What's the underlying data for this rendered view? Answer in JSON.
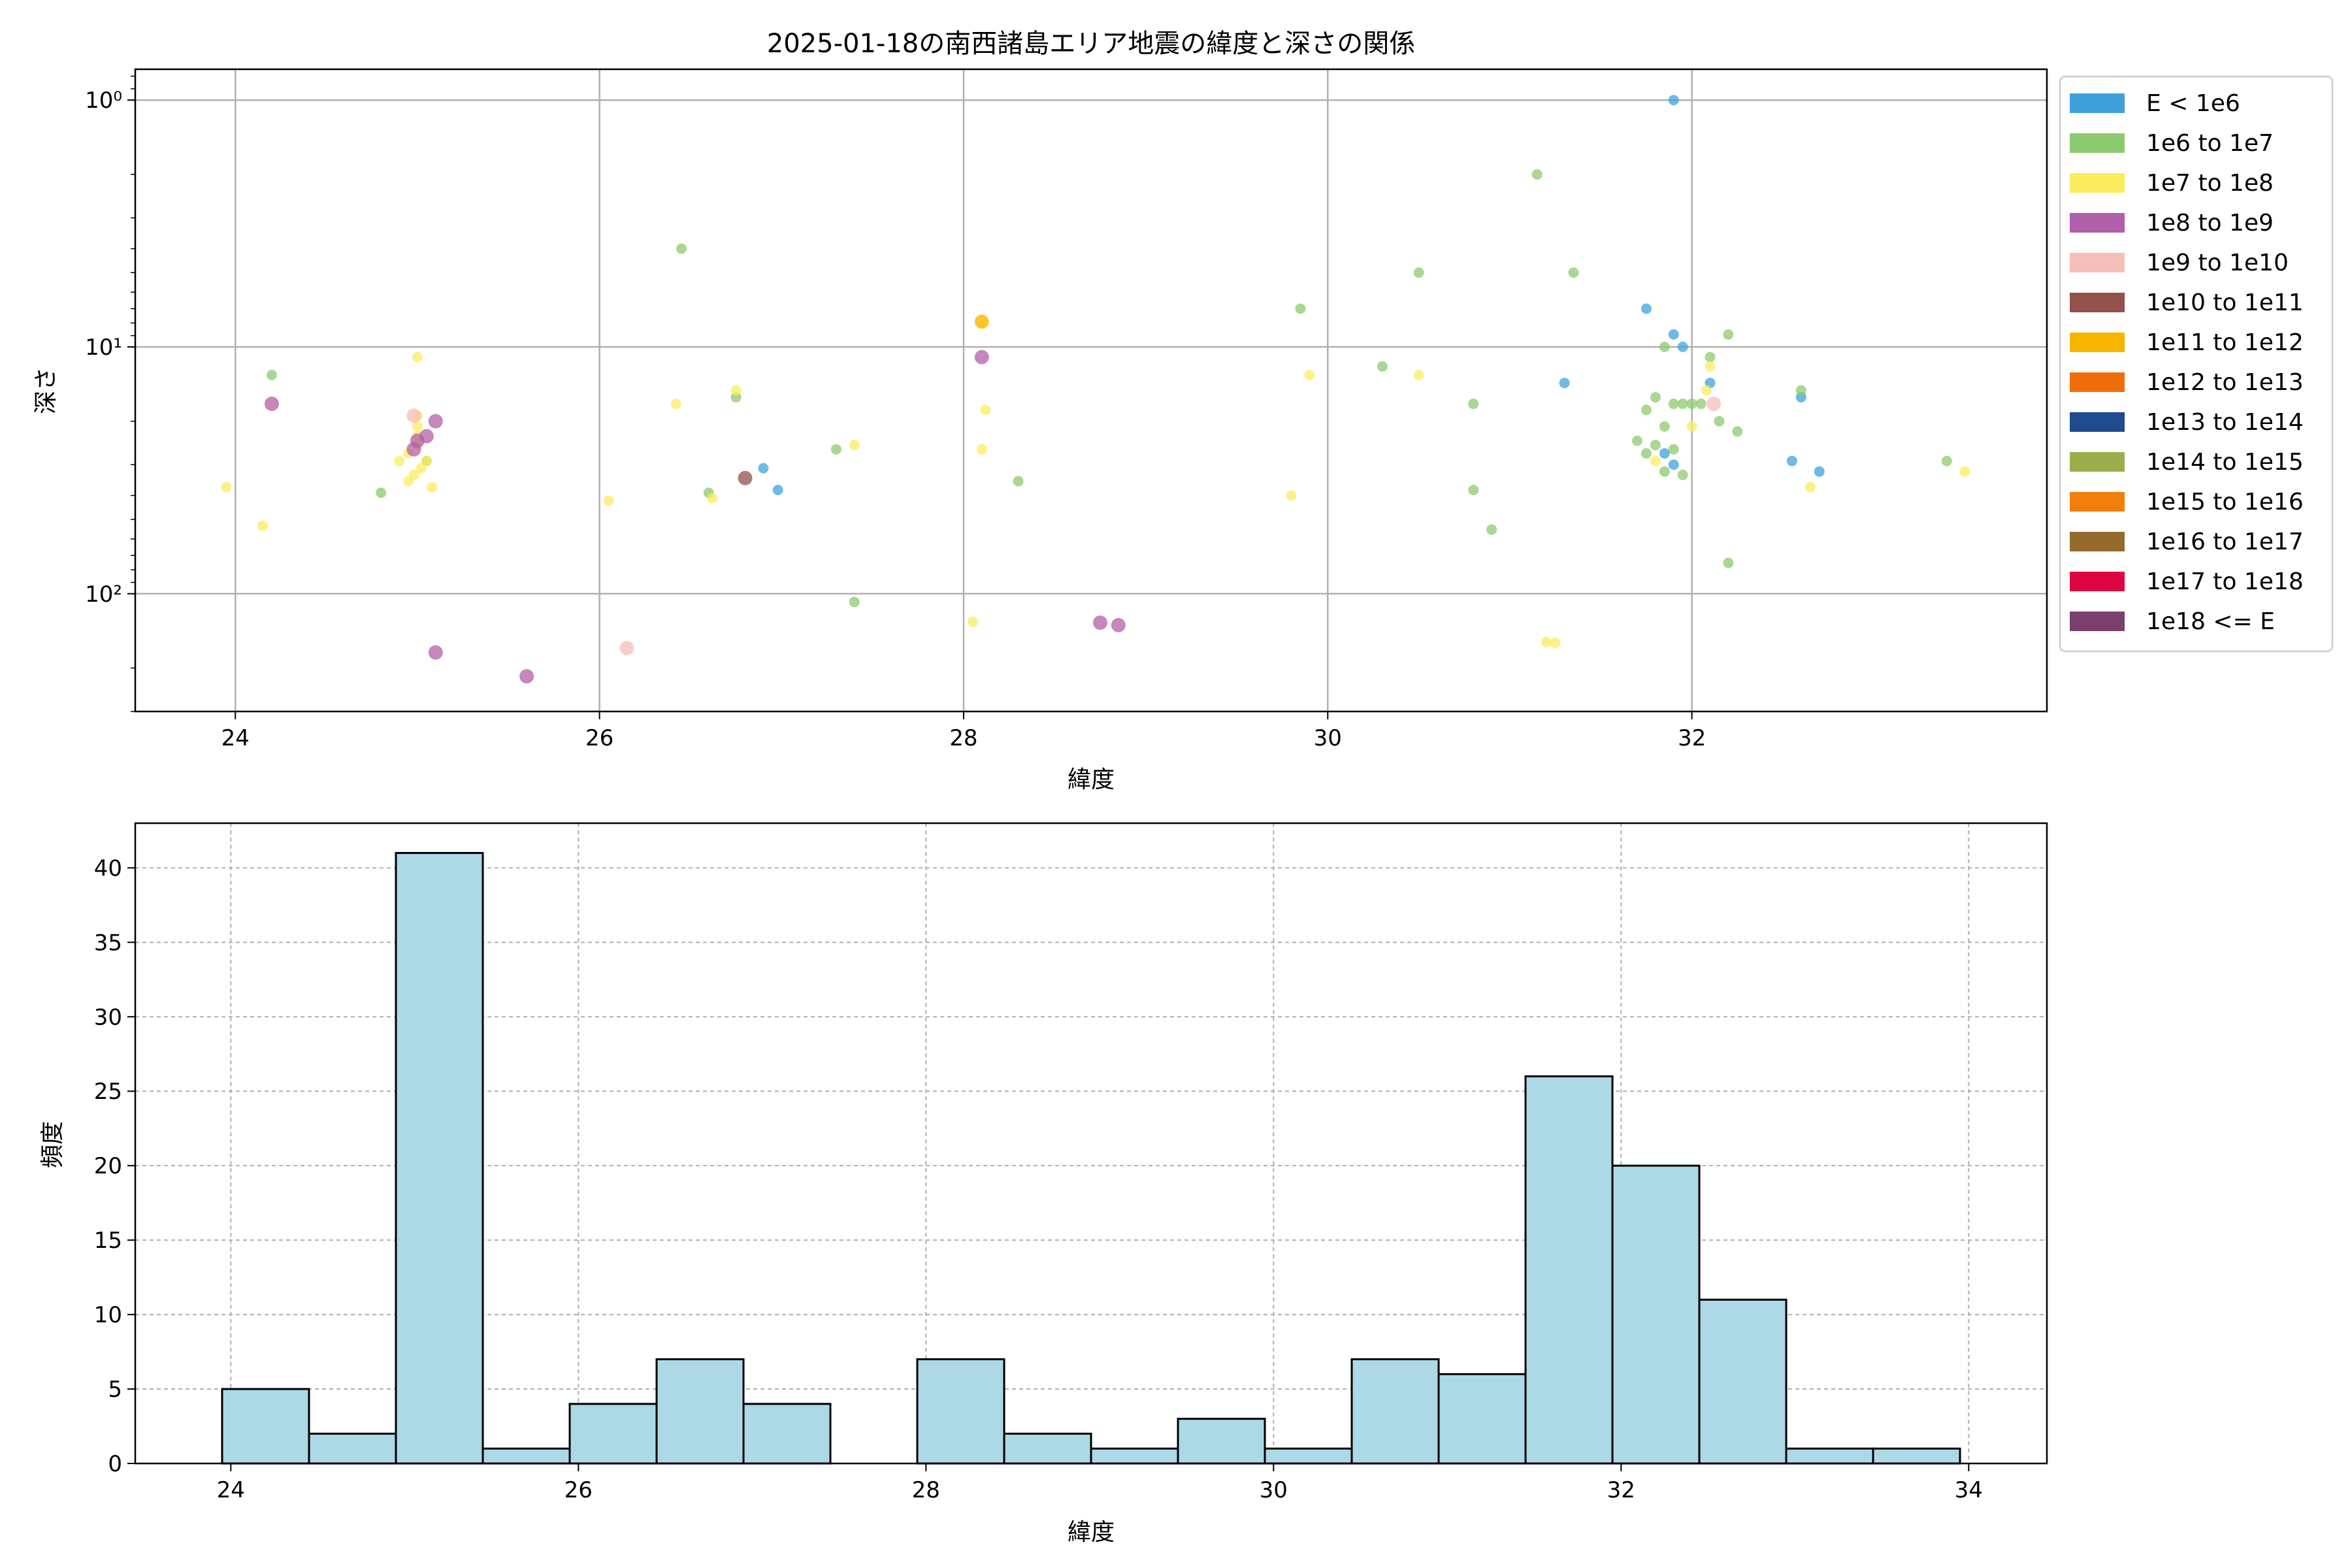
{
  "chart_data": [
    {
      "type": "scatter",
      "title": "2025-01-18の南西諸島エリア地震の緯度と深さの関係",
      "xlabel": "緯度",
      "ylabel": "深さ",
      "xlim": [
        23.45,
        33.95
      ],
      "ylim": [
        300,
        0.75
      ],
      "y_scale": "log",
      "y_inverted": true,
      "grid": true,
      "legend_position": "outside-right",
      "x_ticks": [
        "24",
        "26",
        "28",
        "30",
        "32"
      ],
      "y_ticks": [
        {
          "value": 1,
          "label": "10⁰"
        },
        {
          "value": 10,
          "label": "10¹"
        },
        {
          "value": 100,
          "label": "10²"
        }
      ],
      "legend": [
        {
          "label": "E < 1e6",
          "color": "#3fa1dc"
        },
        {
          "label": "1e6 to 1e7",
          "color": "#8dc96e"
        },
        {
          "label": "1e7 to 1e8",
          "color": "#fbec5d"
        },
        {
          "label": "1e8 to 1e9",
          "color": "#b35ea8"
        },
        {
          "label": "1e9 to 1e10",
          "color": "#f4bfb8"
        },
        {
          "label": "1e10 to 1e11",
          "color": "#94504a"
        },
        {
          "label": "1e11 to 1e12",
          "color": "#f7b500"
        },
        {
          "label": "1e12 to 1e13",
          "color": "#ef6d09"
        },
        {
          "label": "1e13 to 1e14",
          "color": "#1f4a8e"
        },
        {
          "label": "1e14 to 1e15",
          "color": "#9aaf4c"
        },
        {
          "label": "1e15 to 1e16",
          "color": "#f27f0c"
        },
        {
          "label": "1e16 to 1e17",
          "color": "#946b2d"
        },
        {
          "label": "1e17 to 1e18",
          "color": "#dd0542"
        },
        {
          "label": "1e18 <= E",
          "color": "#7a3f6c"
        }
      ],
      "series": [
        {
          "label_ref": "E < 1e6",
          "color": "#3fa1dc",
          "points": [
            [
              31.9,
              1.0
            ],
            [
              31.75,
              7.0
            ],
            [
              31.9,
              8.9
            ],
            [
              31.95,
              10.0
            ],
            [
              31.3,
              14.0
            ],
            [
              32.1,
              14.0
            ],
            [
              32.6,
              16.0
            ],
            [
              32.55,
              29.0
            ],
            [
              31.85,
              27.0
            ],
            [
              31.9,
              30.0
            ],
            [
              32.7,
              32.0
            ],
            [
              26.9,
              31.0
            ],
            [
              26.98,
              38.0
            ]
          ]
        },
        {
          "label_ref": "1e6 to 1e7",
          "color": "#8dc96e",
          "points": [
            [
              31.15,
              2.0
            ],
            [
              26.45,
              4.0
            ],
            [
              30.5,
              5.0
            ],
            [
              31.35,
              5.0
            ],
            [
              29.85,
              7.0
            ],
            [
              32.2,
              8.9
            ],
            [
              31.85,
              10.0
            ],
            [
              32.1,
              11.0
            ],
            [
              24.2,
              13.0
            ],
            [
              30.3,
              12.0
            ],
            [
              26.75,
              16.0
            ],
            [
              31.8,
              16.0
            ],
            [
              31.9,
              17.0
            ],
            [
              31.95,
              17.0
            ],
            [
              30.8,
              17.0
            ],
            [
              31.75,
              18.0
            ],
            [
              31.85,
              21.0
            ],
            [
              32.15,
              20.0
            ],
            [
              32.25,
              22.0
            ],
            [
              31.7,
              24.0
            ],
            [
              31.75,
              27.0
            ],
            [
              31.8,
              25.0
            ],
            [
              31.9,
              26.0
            ],
            [
              31.85,
              32.0
            ],
            [
              31.95,
              33.0
            ],
            [
              32.6,
              15.0
            ],
            [
              32.0,
              17.0
            ],
            [
              32.05,
              17.0
            ],
            [
              27.3,
              26.0
            ],
            [
              28.3,
              35.0
            ],
            [
              26.6,
              39.0
            ],
            [
              24.8,
              39.0
            ],
            [
              30.8,
              38.0
            ],
            [
              30.9,
              55.0
            ],
            [
              32.2,
              75.0
            ],
            [
              27.4,
              108.0
            ],
            [
              33.4,
              29.0
            ],
            [
              25.05,
              29.0
            ]
          ]
        },
        {
          "label_ref": "1e7 to 1e8",
          "color": "#fbec5d",
          "points": [
            [
              25.0,
              11.0
            ],
            [
              25.0,
              19.0
            ],
            [
              25.0,
              21.0
            ],
            [
              25.0,
              23.0
            ],
            [
              25.0,
              25.0
            ],
            [
              24.95,
              27.0
            ],
            [
              24.9,
              29.0
            ],
            [
              25.05,
              29.0
            ],
            [
              25.02,
              31.0
            ],
            [
              24.98,
              33.0
            ],
            [
              24.95,
              35.0
            ],
            [
              25.08,
              37.0
            ],
            [
              23.95,
              37.0
            ],
            [
              24.15,
              53.0
            ],
            [
              26.05,
              42.0
            ],
            [
              26.62,
              41.0
            ],
            [
              26.42,
              17.0
            ],
            [
              26.75,
              15.0
            ],
            [
              27.4,
              25.0
            ],
            [
              28.1,
              7.9
            ],
            [
              28.12,
              18.0
            ],
            [
              28.1,
              26.0
            ],
            [
              28.05,
              130.0
            ],
            [
              29.8,
              40.0
            ],
            [
              29.9,
              13.0
            ],
            [
              30.5,
              13.0
            ],
            [
              31.2,
              157.0
            ],
            [
              31.25,
              158.0
            ],
            [
              32.0,
              21.0
            ],
            [
              32.1,
              12.0
            ],
            [
              32.08,
              15.0
            ],
            [
              32.65,
              37.0
            ],
            [
              33.5,
              32.0
            ],
            [
              31.8,
              29.0
            ]
          ]
        },
        {
          "label_ref": "1e8 to 1e9",
          "color": "#b35ea8",
          "points": [
            [
              24.2,
              17.0
            ],
            [
              25.1,
              20.0
            ],
            [
              25.05,
              23.0
            ],
            [
              25.0,
              24.0
            ],
            [
              24.98,
              26.0
            ],
            [
              25.1,
              173.0
            ],
            [
              25.6,
              216.0
            ],
            [
              28.1,
              11.0
            ],
            [
              28.75,
              131.0
            ],
            [
              28.85,
              134.0
            ]
          ]
        },
        {
          "label_ref": "1e9 to 1e10",
          "color": "#f4bfb8",
          "points": [
            [
              26.15,
              166.0
            ],
            [
              32.12,
              17.0
            ],
            [
              24.98,
              19.0
            ]
          ]
        },
        {
          "label_ref": "1e10 to 1e11",
          "color": "#94504a",
          "points": [
            [
              26.8,
              34.0
            ]
          ]
        },
        {
          "label_ref": "1e11 to 1e12",
          "color": "#f7b500",
          "points": [
            [
              28.1,
              7.9
            ]
          ]
        }
      ]
    },
    {
      "type": "bar",
      "subtype": "histogram",
      "xlabel": "緯度",
      "ylabel": "頻度",
      "xlim": [
        23.45,
        34.45
      ],
      "ylim": [
        0,
        43
      ],
      "grid": true,
      "bar_color": "#add8e6",
      "x_ticks": [
        "24",
        "26",
        "28",
        "30",
        "32",
        "34"
      ],
      "y_ticks": [
        "0",
        "5",
        "10",
        "15",
        "20",
        "25",
        "30",
        "35",
        "40"
      ],
      "bin_edges": [
        23.95,
        24.45,
        24.95,
        25.45,
        25.95,
        26.45,
        26.95,
        27.45,
        27.95,
        28.45,
        28.95,
        29.45,
        29.95,
        30.45,
        30.95,
        31.45,
        31.95,
        32.45,
        32.95,
        33.45,
        33.95
      ],
      "values": [
        5,
        2,
        41,
        1,
        4,
        7,
        4,
        0,
        7,
        2,
        1,
        3,
        1,
        7,
        6,
        26,
        20,
        11,
        1,
        1
      ]
    }
  ]
}
